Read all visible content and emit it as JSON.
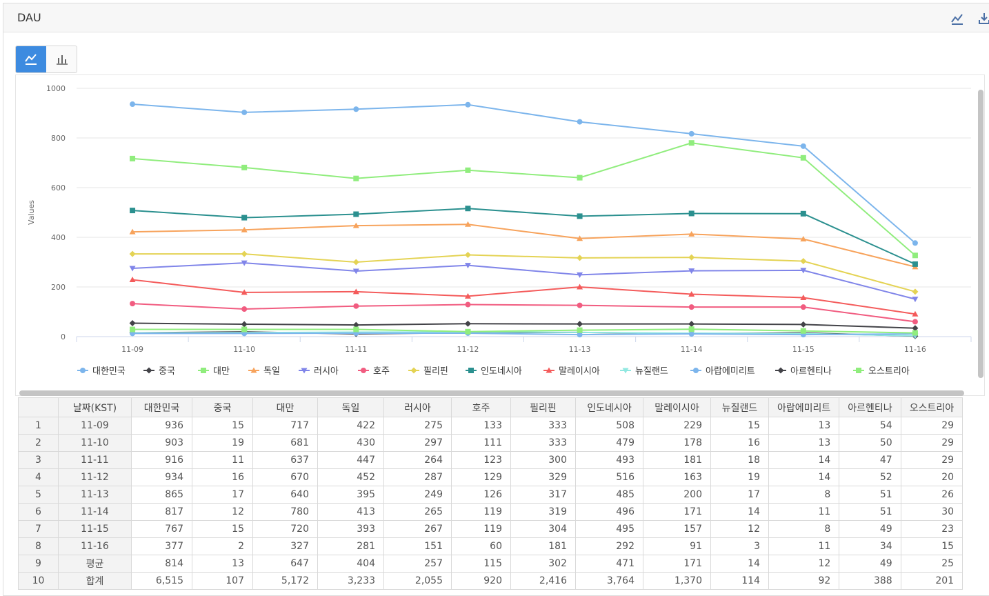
{
  "header": {
    "title": "DAU",
    "chart_icon": "line-chart-icon",
    "download_icon": "download-icon"
  },
  "toggle": {
    "line_icon": "line-chart-icon",
    "bar_icon": "bar-chart-icon",
    "active": "line"
  },
  "chart_data": {
    "type": "line",
    "ylabel": "Values",
    "ylim": [
      0,
      1000
    ],
    "yticks": [
      "0",
      "200",
      "400",
      "600",
      "800",
      "1000"
    ],
    "categories": [
      "11-09",
      "11-10",
      "11-11",
      "11-12",
      "11-13",
      "11-14",
      "11-15",
      "11-16"
    ],
    "grid": true,
    "legend": "bottom",
    "series": [
      {
        "name": "대한민국",
        "color": "#7cb5ec",
        "marker": "circle",
        "values": [
          936,
          903,
          916,
          934,
          865,
          817,
          767,
          377
        ]
      },
      {
        "name": "중국",
        "color": "#434348",
        "marker": "diamond",
        "values": [
          15,
          19,
          11,
          16,
          17,
          12,
          15,
          2
        ]
      },
      {
        "name": "대만",
        "color": "#90ed7d",
        "marker": "square",
        "values": [
          717,
          681,
          637,
          670,
          640,
          780,
          720,
          327
        ]
      },
      {
        "name": "독일",
        "color": "#f7a35c",
        "marker": "triangle",
        "values": [
          422,
          430,
          447,
          452,
          395,
          413,
          393,
          281
        ]
      },
      {
        "name": "러시아",
        "color": "#8085e9",
        "marker": "triangle-down",
        "values": [
          275,
          297,
          264,
          287,
          249,
          265,
          267,
          151
        ]
      },
      {
        "name": "호주",
        "color": "#f15c80",
        "marker": "circle",
        "values": [
          133,
          111,
          123,
          129,
          126,
          119,
          119,
          60
        ]
      },
      {
        "name": "필리핀",
        "color": "#e4d354",
        "marker": "diamond",
        "values": [
          333,
          333,
          300,
          329,
          317,
          319,
          304,
          181
        ]
      },
      {
        "name": "인도네시아",
        "color": "#2b908f",
        "marker": "square",
        "values": [
          508,
          479,
          493,
          516,
          485,
          496,
          495,
          292
        ]
      },
      {
        "name": "말레이시아",
        "color": "#f45b5b",
        "marker": "triangle",
        "values": [
          229,
          178,
          181,
          163,
          200,
          171,
          157,
          91
        ]
      },
      {
        "name": "뉴질랜드",
        "color": "#91e8e1",
        "marker": "triangle-down",
        "values": [
          15,
          16,
          18,
          19,
          17,
          14,
          12,
          3
        ]
      },
      {
        "name": "아랍에미리트",
        "color": "#7cb5ec",
        "marker": "circle",
        "values": [
          13,
          13,
          14,
          14,
          8,
          11,
          8,
          11
        ]
      },
      {
        "name": "아르헨티나",
        "color": "#434348",
        "marker": "diamond",
        "values": [
          54,
          50,
          47,
          52,
          51,
          51,
          49,
          34
        ]
      },
      {
        "name": "오스트리아",
        "color": "#90ed7d",
        "marker": "square",
        "values": [
          29,
          29,
          29,
          20,
          26,
          30,
          23,
          15
        ]
      }
    ]
  },
  "table": {
    "headers": [
      "",
      "날짜(KST)",
      "대한민국",
      "중국",
      "대만",
      "독일",
      "러시아",
      "호주",
      "필리핀",
      "인도네시아",
      "말레이시아",
      "뉴질랜드",
      "아랍에미리트",
      "아르헨티나",
      "오스트리아"
    ],
    "rows": [
      [
        "1",
        "11-09",
        "936",
        "15",
        "717",
        "422",
        "275",
        "133",
        "333",
        "508",
        "229",
        "15",
        "13",
        "54",
        "29"
      ],
      [
        "2",
        "11-10",
        "903",
        "19",
        "681",
        "430",
        "297",
        "111",
        "333",
        "479",
        "178",
        "16",
        "13",
        "50",
        "29"
      ],
      [
        "3",
        "11-11",
        "916",
        "11",
        "637",
        "447",
        "264",
        "123",
        "300",
        "493",
        "181",
        "18",
        "14",
        "47",
        "29"
      ],
      [
        "4",
        "11-12",
        "934",
        "16",
        "670",
        "452",
        "287",
        "129",
        "329",
        "516",
        "163",
        "19",
        "14",
        "52",
        "20"
      ],
      [
        "5",
        "11-13",
        "865",
        "17",
        "640",
        "395",
        "249",
        "126",
        "317",
        "485",
        "200",
        "17",
        "8",
        "51",
        "26"
      ],
      [
        "6",
        "11-14",
        "817",
        "12",
        "780",
        "413",
        "265",
        "119",
        "319",
        "496",
        "171",
        "14",
        "11",
        "51",
        "30"
      ],
      [
        "7",
        "11-15",
        "767",
        "15",
        "720",
        "393",
        "267",
        "119",
        "304",
        "495",
        "157",
        "12",
        "8",
        "49",
        "23"
      ],
      [
        "8",
        "11-16",
        "377",
        "2",
        "327",
        "281",
        "151",
        "60",
        "181",
        "292",
        "91",
        "3",
        "11",
        "34",
        "15"
      ],
      [
        "9",
        "평균",
        "814",
        "13",
        "647",
        "404",
        "257",
        "115",
        "302",
        "471",
        "171",
        "14",
        "12",
        "49",
        "25"
      ],
      [
        "10",
        "합계",
        "6,515",
        "107",
        "5,172",
        "3,233",
        "2,055",
        "920",
        "2,416",
        "3,764",
        "1,370",
        "114",
        "92",
        "388",
        "201"
      ]
    ]
  }
}
